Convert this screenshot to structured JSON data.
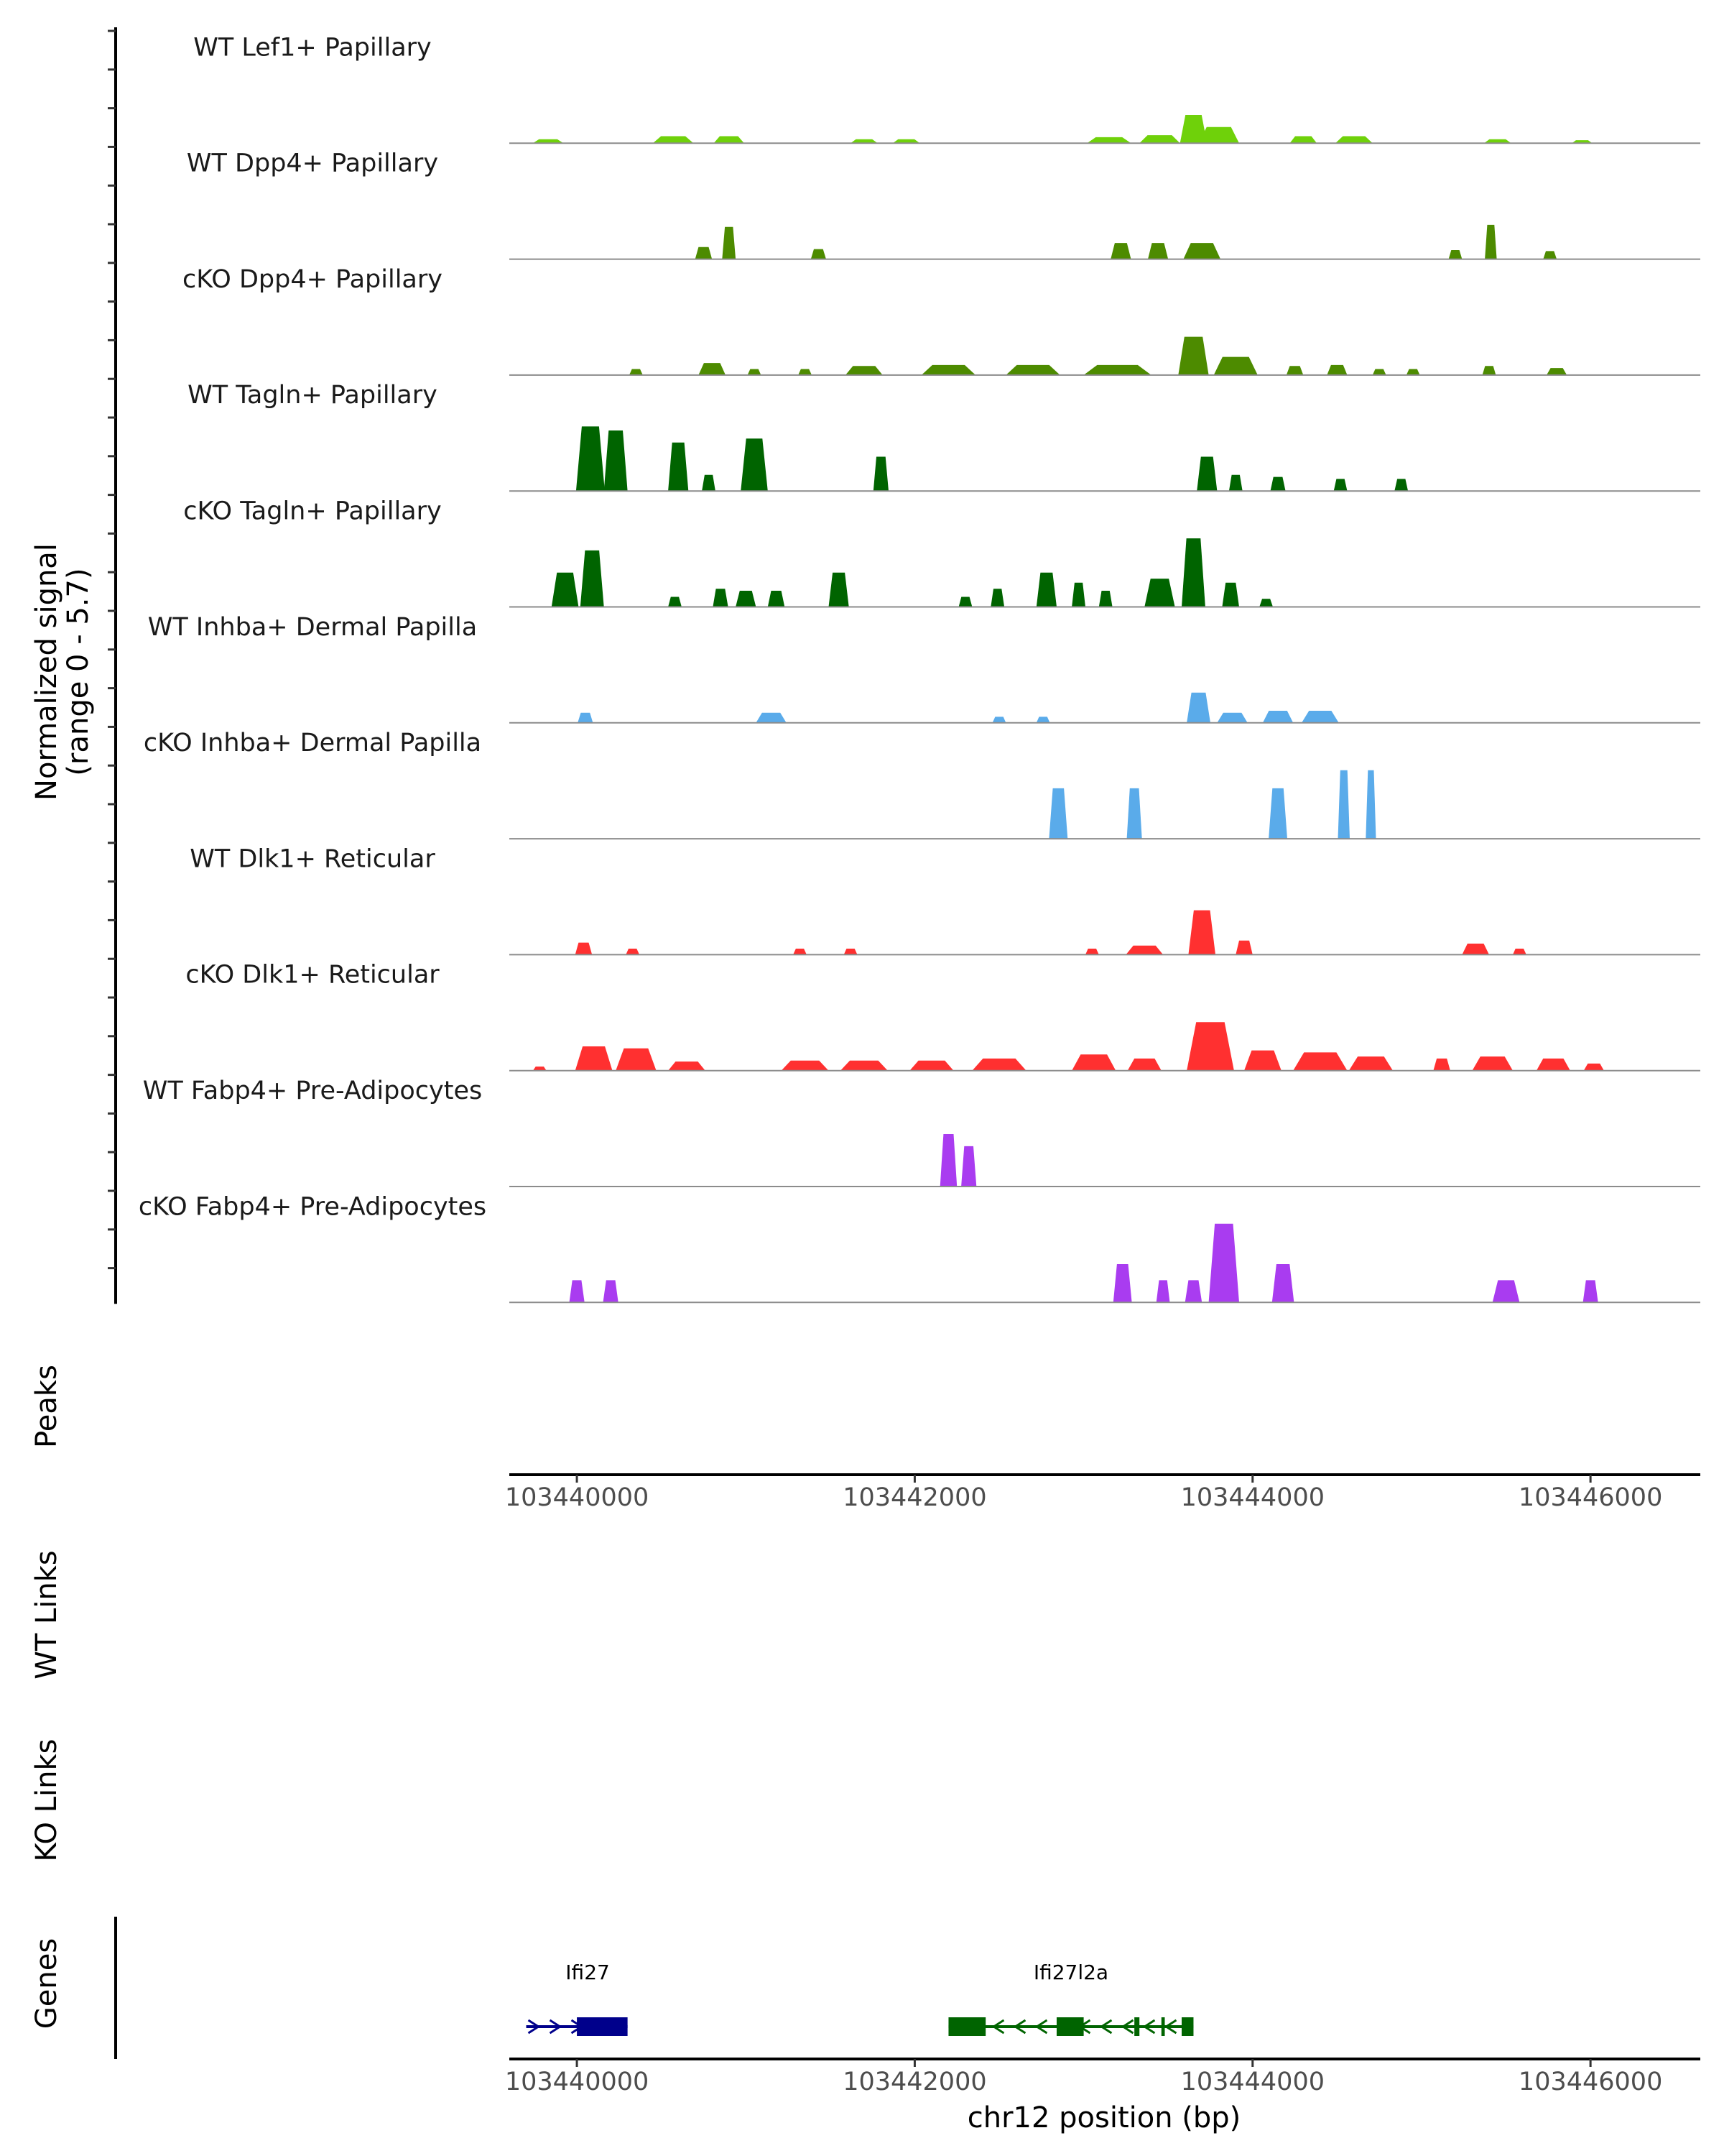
{
  "chart_data": {
    "type": "area",
    "title": "",
    "chromosome": "chr12",
    "xlabel": "chr12 position (bp)",
    "ylabel_line1": "Normalized signal",
    "ylabel_line2": "(range 0 - 5.7)",
    "ylim": [
      0,
      5.7
    ],
    "xlim": [
      103439600,
      103446650
    ],
    "x_ticks": [
      103440000,
      103442000,
      103444000,
      103446000
    ],
    "x_tick_labels": [
      "103440000",
      "103442000",
      "103444000",
      "103446000"
    ],
    "tracks": [
      {
        "label": "WT Lef1+ Papillary",
        "color": "#6fd10a",
        "peaks": [
          [
            103439830,
            0.2,
            90
          ],
          [
            103440570,
            0.35,
            120
          ],
          [
            103440900,
            0.35,
            90
          ],
          [
            103441700,
            0.2,
            80
          ],
          [
            103441950,
            0.2,
            80
          ],
          [
            103443150,
            0.3,
            130
          ],
          [
            103443450,
            0.4,
            120
          ],
          [
            103443650,
            1.4,
            80
          ],
          [
            103443800,
            0.8,
            120
          ],
          [
            103444300,
            0.35,
            80
          ],
          [
            103444600,
            0.35,
            110
          ],
          [
            103445450,
            0.2,
            80
          ],
          [
            103445950,
            0.15,
            60
          ]
        ]
      },
      {
        "label": "WT Dpp4+ Papillary",
        "color": "#4d8b00",
        "peaks": [
          [
            103440750,
            0.6,
            50
          ],
          [
            103440900,
            1.6,
            40
          ],
          [
            103441430,
            0.5,
            45
          ],
          [
            103443220,
            0.8,
            60
          ],
          [
            103443440,
            0.8,
            60
          ],
          [
            103443700,
            0.8,
            110
          ],
          [
            103445200,
            0.45,
            40
          ],
          [
            103445410,
            1.7,
            35
          ],
          [
            103445760,
            0.4,
            40
          ]
        ]
      },
      {
        "label": "cKO Dpp4+ Papillary",
        "color": "#4d8b00",
        "peaks": [
          [
            103440350,
            0.3,
            40
          ],
          [
            103440800,
            0.6,
            80
          ],
          [
            103441050,
            0.3,
            40
          ],
          [
            103441350,
            0.3,
            40
          ],
          [
            103441700,
            0.45,
            110
          ],
          [
            103442200,
            0.5,
            160
          ],
          [
            103442700,
            0.5,
            160
          ],
          [
            103443200,
            0.5,
            200
          ],
          [
            103443650,
            1.9,
            90
          ],
          [
            103443900,
            0.9,
            130
          ],
          [
            103444250,
            0.45,
            50
          ],
          [
            103444500,
            0.5,
            60
          ],
          [
            103444750,
            0.3,
            40
          ],
          [
            103444950,
            0.3,
            40
          ],
          [
            103445400,
            0.45,
            40
          ],
          [
            103445800,
            0.35,
            60
          ]
        ]
      },
      {
        "label": "WT Tagln+ Papillary",
        "color": "#006400",
        "peaks": [
          [
            103440080,
            3.2,
            85
          ],
          [
            103440230,
            3.0,
            70
          ],
          [
            103440600,
            2.4,
            60
          ],
          [
            103440780,
            0.8,
            40
          ],
          [
            103441050,
            2.6,
            80
          ],
          [
            103441800,
            1.7,
            45
          ],
          [
            103443730,
            1.7,
            60
          ],
          [
            103443900,
            0.8,
            40
          ],
          [
            103444150,
            0.7,
            45
          ],
          [
            103444520,
            0.6,
            40
          ],
          [
            103444880,
            0.6,
            40
          ]
        ]
      },
      {
        "label": "cKO Tagln+ Papillary",
        "color": "#006400",
        "peaks": [
          [
            103439930,
            1.7,
            80
          ],
          [
            103440090,
            2.8,
            70
          ],
          [
            103440580,
            0.5,
            40
          ],
          [
            103440850,
            0.9,
            45
          ],
          [
            103441000,
            0.8,
            60
          ],
          [
            103441180,
            0.8,
            50
          ],
          [
            103441550,
            1.7,
            60
          ],
          [
            103442300,
            0.5,
            40
          ],
          [
            103442490,
            0.9,
            40
          ],
          [
            103442780,
            1.7,
            60
          ],
          [
            103442970,
            1.2,
            40
          ],
          [
            103443130,
            0.8,
            40
          ],
          [
            103443450,
            1.4,
            90
          ],
          [
            103443650,
            3.4,
            70
          ],
          [
            103443870,
            1.2,
            50
          ],
          [
            103444080,
            0.4,
            40
          ]
        ]
      },
      {
        "label": "WT Inhba+ Dermal Papilla",
        "color": "#5aabea",
        "peaks": [
          [
            103440050,
            0.5,
            45
          ],
          [
            103441150,
            0.5,
            90
          ],
          [
            103442500,
            0.3,
            40
          ],
          [
            103442760,
            0.3,
            40
          ],
          [
            103443680,
            1.5,
            70
          ],
          [
            103443880,
            0.5,
            90
          ],
          [
            103444150,
            0.6,
            90
          ],
          [
            103444400,
            0.6,
            110
          ]
        ]
      },
      {
        "label": "cKO Inhba+ Dermal Papilla",
        "color": "#5aabea",
        "peaks": [
          [
            103442850,
            2.5,
            55
          ],
          [
            103443300,
            2.5,
            45
          ],
          [
            103444150,
            2.5,
            55
          ],
          [
            103444540,
            3.4,
            35
          ],
          [
            103444700,
            3.4,
            30
          ]
        ]
      },
      {
        "label": "WT Dlk1+ Reticular",
        "color": "#ff3030",
        "peaks": [
          [
            103440040,
            0.6,
            50
          ],
          [
            103440330,
            0.3,
            40
          ],
          [
            103441320,
            0.3,
            40
          ],
          [
            103441620,
            0.3,
            40
          ],
          [
            103443050,
            0.3,
            40
          ],
          [
            103443360,
            0.45,
            110
          ],
          [
            103443700,
            2.2,
            80
          ],
          [
            103443950,
            0.7,
            50
          ],
          [
            103445320,
            0.55,
            80
          ],
          [
            103445580,
            0.3,
            40
          ]
        ]
      },
      {
        "label": "cKO Dlk1+ Reticular",
        "color": "#ff3030",
        "peaks": [
          [
            103439780,
            0.2,
            40
          ],
          [
            103440100,
            1.2,
            110
          ],
          [
            103440350,
            1.1,
            120
          ],
          [
            103440650,
            0.45,
            110
          ],
          [
            103441350,
            0.5,
            140
          ],
          [
            103441700,
            0.5,
            140
          ],
          [
            103442100,
            0.5,
            130
          ],
          [
            103442500,
            0.6,
            160
          ],
          [
            103443060,
            0.8,
            130
          ],
          [
            103443360,
            0.6,
            100
          ],
          [
            103443750,
            2.4,
            140
          ],
          [
            103444060,
            1.0,
            110
          ],
          [
            103444400,
            0.9,
            160
          ],
          [
            103444700,
            0.7,
            130
          ],
          [
            103445120,
            0.6,
            50
          ],
          [
            103445420,
            0.7,
            120
          ],
          [
            103445780,
            0.6,
            100
          ],
          [
            103446020,
            0.35,
            60
          ]
        ]
      },
      {
        "label": "WT Fabp4+ Pre-Adipocytes",
        "color": "#a93cf0",
        "peaks": [
          [
            103442200,
            2.6,
            50
          ],
          [
            103442320,
            2.0,
            45
          ]
        ]
      },
      {
        "label": "cKO Fabp4+ Pre-Adipocytes",
        "color": "#a93cf0",
        "peaks": [
          [
            103440000,
            1.1,
            45
          ],
          [
            103440200,
            1.1,
            45
          ],
          [
            103443230,
            1.9,
            55
          ],
          [
            103443470,
            1.1,
            40
          ],
          [
            103443650,
            1.1,
            50
          ],
          [
            103443830,
            3.9,
            90
          ],
          [
            103444180,
            1.9,
            65
          ],
          [
            103445500,
            1.1,
            80
          ],
          [
            103446000,
            1.1,
            45
          ]
        ]
      }
    ],
    "peaks_track_label": "Peaks",
    "wt_links_label": "WT Links",
    "ko_links_label": "KO Links",
    "genes_track_label": "Genes",
    "genes": [
      {
        "name": "Ifi27",
        "color": "#00008b",
        "strand": "+",
        "start": 103439700,
        "end": 103440300,
        "exons": [
          [
            103440000,
            103440300
          ]
        ]
      },
      {
        "name": "Ifi27l2a",
        "color": "#006400",
        "strand": "-",
        "start": 103442200,
        "end": 103443650,
        "exons": [
          [
            103442200,
            103442420
          ],
          [
            103442840,
            103443000
          ],
          [
            103443300,
            103443330
          ],
          [
            103443460,
            103443480
          ],
          [
            103443580,
            103443650
          ]
        ]
      }
    ]
  }
}
